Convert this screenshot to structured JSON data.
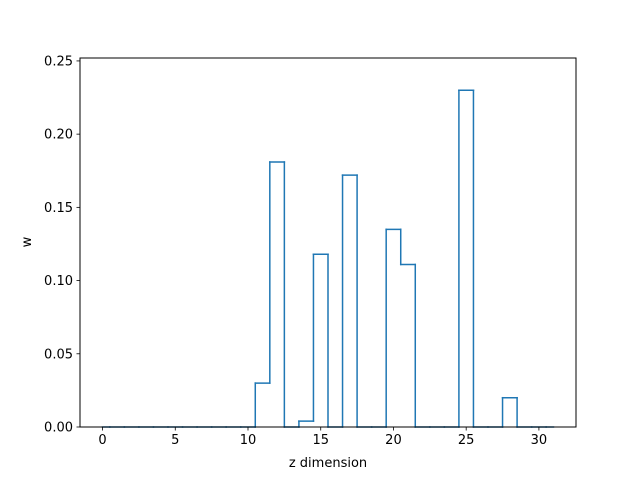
{
  "chart_data": {
    "type": "line",
    "drawstyle": "steps-mid",
    "xlabel": "z dimension",
    "ylabel": "w",
    "xlim": [
      -1.55,
      32.55
    ],
    "ylim": [
      0.0,
      0.252
    ],
    "x_ticks": [
      0,
      5,
      10,
      15,
      20,
      25,
      30
    ],
    "x_tick_labels": [
      "0",
      "5",
      "10",
      "15",
      "20",
      "25",
      "30"
    ],
    "y_ticks": [
      0.0,
      0.05,
      0.1,
      0.15,
      0.2,
      0.25
    ],
    "y_tick_labels": [
      "0.00",
      "0.05",
      "0.10",
      "0.15",
      "0.20",
      "0.25"
    ],
    "grid": false,
    "series": [
      {
        "color": "#1f77b4",
        "x": [
          0,
          1,
          2,
          3,
          4,
          5,
          6,
          7,
          8,
          9,
          10,
          11,
          12,
          13,
          14,
          15,
          16,
          17,
          18,
          19,
          20,
          21,
          22,
          23,
          24,
          25,
          26,
          27,
          28,
          29,
          30,
          31
        ],
        "values": [
          0,
          0,
          0,
          0,
          0,
          0,
          0,
          0,
          0,
          0,
          0,
          0.03,
          0.181,
          0,
          0.004,
          0.118,
          0,
          0.172,
          0,
          0,
          0.135,
          0.111,
          0,
          0,
          0,
          0.23,
          0,
          0,
          0.02,
          0,
          0,
          0
        ]
      }
    ]
  }
}
